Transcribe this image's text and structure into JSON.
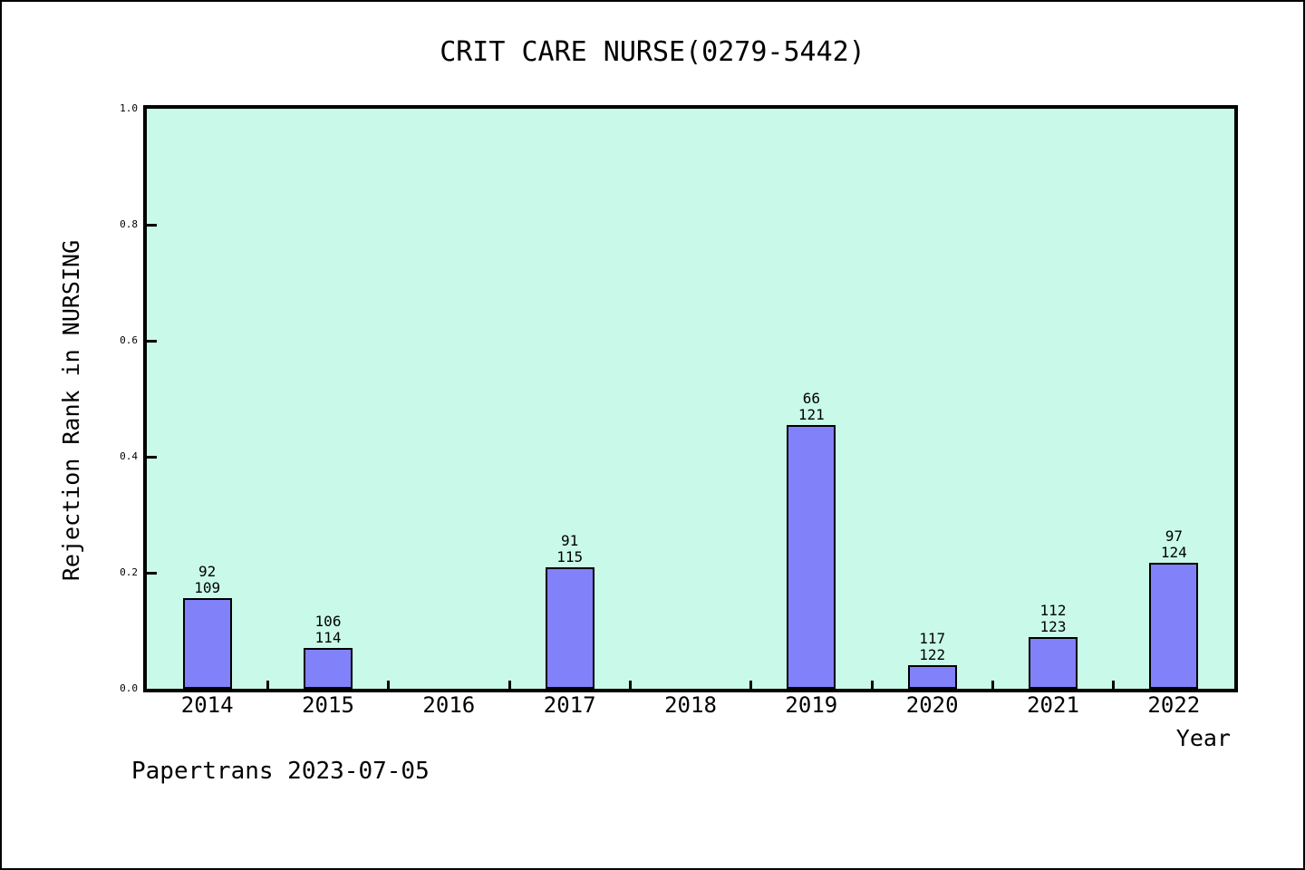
{
  "title": "CRIT CARE NURSE(0279-5442)",
  "footer": "Papertrans 2023-07-05",
  "chart_data": {
    "type": "bar",
    "title": "CRIT CARE NURSE(0279-5442)",
    "xlabel": "Year",
    "ylabel": "Rejection Rank in NURSING",
    "ylim": [
      0.0,
      1.0
    ],
    "yticks": [
      0.0,
      0.2,
      0.4,
      0.6,
      0.8,
      1.0
    ],
    "grid": false,
    "legend": false,
    "categories": [
      "2014",
      "2015",
      "2016",
      "2017",
      "2018",
      "2019",
      "2020",
      "2021",
      "2022"
    ],
    "bars": [
      {
        "year": "2014",
        "rank": 92,
        "total": 109,
        "value": 0.156
      },
      {
        "year": "2015",
        "rank": 106,
        "total": 114,
        "value": 0.0702
      },
      {
        "year": "2016",
        "rank": null,
        "total": null,
        "value": 0
      },
      {
        "year": "2017",
        "rank": 91,
        "total": 115,
        "value": 0.2087
      },
      {
        "year": "2018",
        "rank": null,
        "total": null,
        "value": 0
      },
      {
        "year": "2019",
        "rank": 66,
        "total": 121,
        "value": 0.4545
      },
      {
        "year": "2020",
        "rank": 117,
        "total": 122,
        "value": 0.041
      },
      {
        "year": "2021",
        "rank": 112,
        "total": 123,
        "value": 0.0894
      },
      {
        "year": "2022",
        "rank": 97,
        "total": 124,
        "value": 0.2177
      }
    ],
    "colors": {
      "bar_fill": "#8181fa",
      "bar_border": "#000000",
      "plot_background": "#c9fae9",
      "frame": "#000000",
      "text": "#000000"
    }
  }
}
